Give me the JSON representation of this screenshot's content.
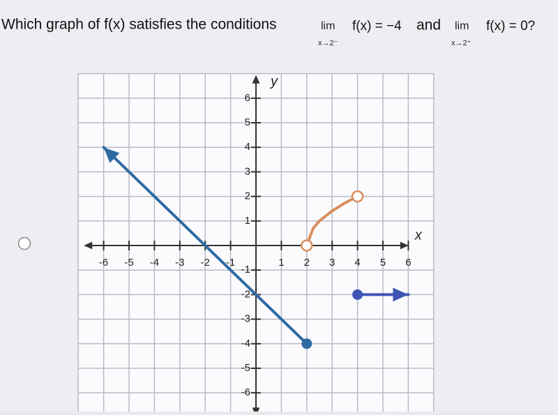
{
  "question": {
    "prefix": "Which graph of f(x) satisfies the conditions",
    "lim1": {
      "word": "lim",
      "sub": "x→2⁻",
      "expr": "f(x) = −4"
    },
    "joiner": "and",
    "lim2": {
      "word": "lim",
      "sub": "x→2⁺",
      "expr": "f(x) = 0?"
    }
  },
  "chart_data": {
    "type": "line",
    "x_label": "x",
    "y_label": "y",
    "xlim": [
      -7,
      7
    ],
    "ylim": [
      -7,
      7
    ],
    "xticks": [
      -6,
      -5,
      -4,
      -3,
      -2,
      -1,
      1,
      2,
      3,
      4,
      5,
      6
    ],
    "yticks": [
      -6,
      -5,
      -4,
      -3,
      -2,
      -1,
      1,
      2,
      3,
      4,
      5,
      6
    ],
    "grid": true,
    "series": [
      {
        "color": "#2f6aa3",
        "x": [
          -6,
          2
        ],
        "values": [
          4,
          -4
        ],
        "start": "arrow",
        "end": "closed"
      },
      {
        "color": "#d98e5b",
        "x": [
          2,
          2.25,
          2.5,
          3,
          3.5,
          4
        ],
        "values": [
          0,
          0.7,
          1,
          1.41,
          1.73,
          2
        ],
        "start": "open",
        "end": "open"
      },
      {
        "color": "#3f55b5",
        "x": [
          4,
          6
        ],
        "values": [
          -2,
          -2
        ],
        "start": "closed",
        "end": "arrow"
      }
    ]
  }
}
